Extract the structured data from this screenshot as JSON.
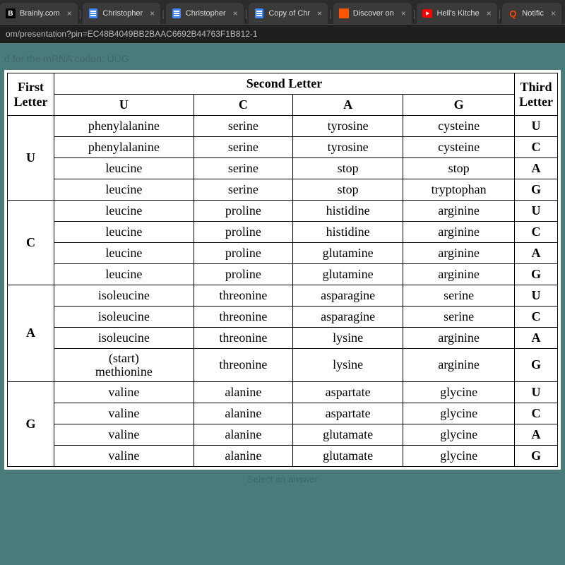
{
  "tabs": [
    {
      "label": "Brainly.com",
      "favicon": "brainly"
    },
    {
      "label": "Christopher",
      "favicon": "docs"
    },
    {
      "label": "Christopher",
      "favicon": "docs"
    },
    {
      "label": "Copy of Chr",
      "favicon": "docs"
    },
    {
      "label": "Discover on",
      "favicon": "soundcloud"
    },
    {
      "label": "Hell's Kitche",
      "favicon": "youtube"
    },
    {
      "label": "Notific",
      "favicon": "quora"
    }
  ],
  "address_bar": "om/presentation?pin=EC48B4049BB2BAAC6692B44763F1B812-1",
  "ghost_text_top": "d for the mRNA codon: UUG",
  "ghost_text_bottom": "Select an answer",
  "table": {
    "header": {
      "first": "First\nLetter",
      "second": "Second Letter",
      "third": "Third\nLetter",
      "cols": [
        "U",
        "C",
        "A",
        "G"
      ]
    },
    "groups": [
      {
        "first": "U",
        "rows": [
          {
            "u": "phenylalanine",
            "c": "serine",
            "a": "tyrosine",
            "g": "cysteine",
            "third": "U"
          },
          {
            "u": "phenylalanine",
            "c": "serine",
            "a": "tyrosine",
            "g": "cysteine",
            "third": "C"
          },
          {
            "u": "leucine",
            "c": "serine",
            "a": "stop",
            "g": "stop",
            "third": "A"
          },
          {
            "u": "leucine",
            "c": "serine",
            "a": "stop",
            "g": "tryptophan",
            "third": "G"
          }
        ]
      },
      {
        "first": "C",
        "rows": [
          {
            "u": "leucine",
            "c": "proline",
            "a": "histidine",
            "g": "arginine",
            "third": "U"
          },
          {
            "u": "leucine",
            "c": "proline",
            "a": "histidine",
            "g": "arginine",
            "third": "C"
          },
          {
            "u": "leucine",
            "c": "proline",
            "a": "glutamine",
            "g": "arginine",
            "third": "A"
          },
          {
            "u": "leucine",
            "c": "proline",
            "a": "glutamine",
            "g": "arginine",
            "third": "G"
          }
        ]
      },
      {
        "first": "A",
        "rows": [
          {
            "u": "isoleucine",
            "c": "threonine",
            "a": "asparagine",
            "g": "serine",
            "third": "U"
          },
          {
            "u": "isoleucine",
            "c": "threonine",
            "a": "asparagine",
            "g": "serine",
            "third": "C"
          },
          {
            "u": "isoleucine",
            "c": "threonine",
            "a": "lysine",
            "g": "arginine",
            "third": "A"
          },
          {
            "u": "(start)\nmethionine",
            "c": "threonine",
            "a": "lysine",
            "g": "arginine",
            "third": "G",
            "small": true
          }
        ]
      },
      {
        "first": "G",
        "rows": [
          {
            "u": "valine",
            "c": "alanine",
            "a": "aspartate",
            "g": "glycine",
            "third": "U"
          },
          {
            "u": "valine",
            "c": "alanine",
            "a": "aspartate",
            "g": "glycine",
            "third": "C"
          },
          {
            "u": "valine",
            "c": "alanine",
            "a": "glutamate",
            "g": "glycine",
            "third": "A"
          },
          {
            "u": "valine",
            "c": "alanine",
            "a": "glutamate",
            "g": "glycine",
            "third": "G"
          }
        ]
      }
    ]
  }
}
